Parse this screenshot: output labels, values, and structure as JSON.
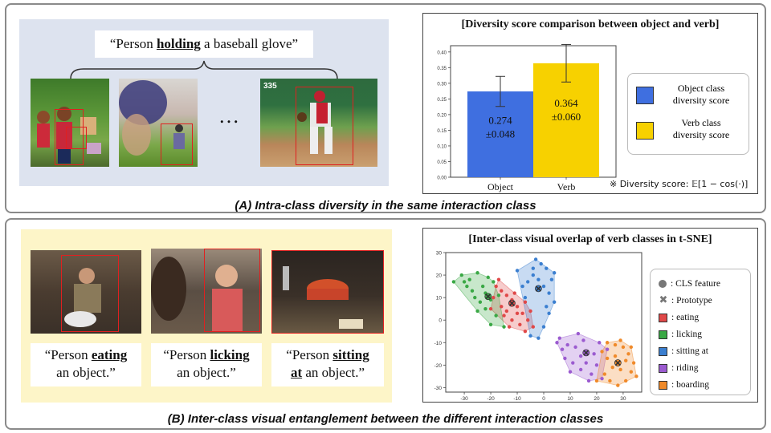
{
  "panelA": {
    "quote_pre": "“Person ",
    "quote_verb": "holding",
    "quote_post": " a baseball glove”",
    "ellipsis": "…",
    "caption": "(A) Intra-class diversity in the same interaction class",
    "scoreboard": "335",
    "chart": {
      "title": "[Diversity score comparison between object and verb]",
      "footnote": "※ Diversity score: 𝔼[1 − cos(·)]",
      "legend": [
        {
          "label_line1": "Object class",
          "label_line2": "diversity score",
          "color": "#3f6fe0"
        },
        {
          "label_line1": "Verb class",
          "label_line2": "diversity score",
          "color": "#f7d100"
        }
      ]
    }
  },
  "chart_data": [
    {
      "type": "bar",
      "title": "[Diversity score comparison between object and verb]",
      "categories": [
        "Object",
        "Verb"
      ],
      "values": [
        0.274,
        0.364
      ],
      "errors": [
        0.048,
        0.06
      ],
      "value_labels": [
        [
          "0.274",
          "±0.048"
        ],
        [
          "0.364",
          "±0.060"
        ]
      ],
      "colors": [
        "#3f6fe0",
        "#f7d100"
      ],
      "ylim": [
        0,
        0.42
      ],
      "yticks": [
        "0.00",
        "0.05",
        "0.10",
        "0.15",
        "0.20",
        "0.25",
        "0.30",
        "0.35",
        "0.40"
      ],
      "ytick_values": [
        0,
        0.05,
        0.1,
        0.15,
        0.2,
        0.25,
        0.3,
        0.35,
        0.4
      ],
      "xlabel": "",
      "ylabel": ""
    },
    {
      "type": "scatter",
      "title": "[Inter-class visual overlap of verb classes in t-SNE]",
      "xlim": [
        -37,
        37
      ],
      "ylim": [
        -32,
        30
      ],
      "xticks": [
        -30,
        -20,
        -10,
        0,
        10,
        20,
        30
      ],
      "yticks": [
        30,
        20,
        10,
        0,
        -10,
        -20,
        -30
      ],
      "series": [
        {
          "name": ": eating",
          "color": "#e04848",
          "prototype": [
            -12,
            7.5
          ],
          "points": [
            [
              -18,
              15
            ],
            [
              -16,
              13
            ],
            [
              -14,
              11
            ],
            [
              -12,
              9
            ],
            [
              -10,
              6
            ],
            [
              -8,
              3
            ],
            [
              -6,
              0
            ],
            [
              -14,
              4
            ],
            [
              -16,
              6
            ],
            [
              -11,
              12
            ],
            [
              -7,
              8
            ],
            [
              -5,
              4
            ],
            [
              -9,
              -2
            ],
            [
              -12,
              0
            ],
            [
              -15,
              2
            ],
            [
              -19,
              10
            ],
            [
              -20,
              5
            ],
            [
              -13,
              -3
            ],
            [
              -7,
              -5
            ],
            [
              -4,
              -3
            ],
            [
              -10,
              3
            ],
            [
              -17,
              18
            ]
          ]
        },
        {
          "name": ": licking",
          "color": "#3aa845",
          "prototype": [
            -21,
            10.5
          ],
          "points": [
            [
              -34,
              17
            ],
            [
              -31,
              20
            ],
            [
              -28,
              18
            ],
            [
              -25,
              21
            ],
            [
              -23,
              15
            ],
            [
              -22,
              12
            ],
            [
              -20,
              9
            ],
            [
              -24,
              8
            ],
            [
              -27,
              13
            ],
            [
              -29,
              15
            ],
            [
              -19,
              17
            ],
            [
              -17,
              11
            ],
            [
              -22,
              5
            ],
            [
              -25,
              4
            ],
            [
              -18,
              2
            ],
            [
              -20,
              -2
            ],
            [
              -15,
              -3
            ],
            [
              -26,
              10
            ],
            [
              -30,
              17
            ],
            [
              -21,
              19
            ]
          ]
        },
        {
          "name": ": sitting at",
          "color": "#3b7fd0",
          "prototype": [
            -2,
            14
          ],
          "points": [
            [
              -3,
              27
            ],
            [
              -1,
              25
            ],
            [
              1,
              23
            ],
            [
              -4,
              20
            ],
            [
              -6,
              17
            ],
            [
              -8,
              15
            ],
            [
              -2,
              18
            ],
            [
              0,
              15
            ],
            [
              2,
              12
            ],
            [
              3,
              18
            ],
            [
              4,
              8
            ],
            [
              2,
              3
            ],
            [
              0,
              -3
            ],
            [
              -2,
              -8
            ],
            [
              -5,
              -7
            ],
            [
              -7,
              10
            ],
            [
              -10,
              22
            ],
            [
              -4,
              23
            ],
            [
              4,
              21
            ],
            [
              1,
              6
            ]
          ]
        },
        {
          "name": ": riding",
          "color": "#9b5bd0",
          "prototype": [
            16,
            -14.5
          ],
          "points": [
            [
              6,
              -8
            ],
            [
              9,
              -11
            ],
            [
              12,
              -12
            ],
            [
              14,
              -16
            ],
            [
              16,
              -19
            ],
            [
              18,
              -24
            ],
            [
              17,
              -27
            ],
            [
              14,
              -22
            ],
            [
              11,
              -19
            ],
            [
              8,
              -17
            ],
            [
              20,
              -20
            ],
            [
              19,
              -15
            ],
            [
              21,
              -10
            ],
            [
              15,
              -9
            ],
            [
              24,
              -13
            ],
            [
              13,
              -6
            ],
            [
              7,
              -13
            ],
            [
              22,
              -26
            ],
            [
              10,
              -23
            ],
            [
              5,
              -10
            ]
          ]
        },
        {
          "name": ": boarding",
          "color": "#f08a2a",
          "prototype": [
            28,
            -19
          ],
          "points": [
            [
              24,
              -10
            ],
            [
              27,
              -11
            ],
            [
              30,
              -12
            ],
            [
              32,
              -15
            ],
            [
              34,
              -19
            ],
            [
              33,
              -23
            ],
            [
              31,
              -27
            ],
            [
              28,
              -29
            ],
            [
              25,
              -27
            ],
            [
              23,
              -24
            ],
            [
              26,
              -21
            ],
            [
              29,
              -22
            ],
            [
              31,
              -18
            ],
            [
              27,
              -16
            ],
            [
              24,
              -17
            ],
            [
              22,
              -14
            ],
            [
              35,
              -25
            ],
            [
              29,
              -9
            ],
            [
              20,
              -27
            ],
            [
              33,
              -12
            ]
          ]
        }
      ]
    }
  ],
  "panelB": {
    "caption": "(B) Inter-class visual entanglement between the different interaction classes",
    "quotes": [
      {
        "l1_pre": "“Person ",
        "l1_verb": "eating",
        "l2": "an object.”"
      },
      {
        "l1_pre": "“Person ",
        "l1_verb": "licking",
        "l2": "an object.”"
      },
      {
        "l1_pre": "“Person ",
        "l1_verb": "sitting",
        "l2_verb": "at",
        "l2_post": " an object.”"
      }
    ],
    "chart": {
      "title": "[Inter-class visual overlap of verb classes in t-SNE]",
      "legend": [
        {
          "label": ": CLS feature",
          "marker": "circle",
          "color": "#777777"
        },
        {
          "label": ": Prototype",
          "marker": "cross",
          "color": "#777777"
        },
        {
          "label": ": eating",
          "marker": "square",
          "color": "#e04848"
        },
        {
          "label": ": licking",
          "marker": "square",
          "color": "#3aa845"
        },
        {
          "label": ": sitting at",
          "marker": "square",
          "color": "#3b7fd0"
        },
        {
          "label": ": riding",
          "marker": "square",
          "color": "#9b5bd0"
        },
        {
          "label": ": boarding",
          "marker": "square",
          "color": "#f08a2a"
        }
      ]
    }
  }
}
